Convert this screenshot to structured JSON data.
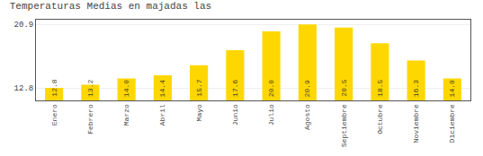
{
  "chart_data": {
    "type": "bar",
    "title": "Temperaturas Medias en majadas las",
    "categories": [
      "Enero",
      "Febrero",
      "Marzo",
      "Abril",
      "Mayo",
      "Junio",
      "Julio",
      "Agosto",
      "Septiembre",
      "Octubre",
      "Noviembre",
      "Diciembre"
    ],
    "values": [
      12.8,
      13.2,
      14.0,
      14.4,
      15.7,
      17.6,
      20.0,
      20.9,
      20.5,
      18.5,
      16.3,
      14.0
    ],
    "value_labels": [
      "12.8",
      "13.2",
      "14.0",
      "14.4",
      "15.7",
      "17.6",
      "20.0",
      "20.9",
      "20.5",
      "18.5",
      "16.3",
      "14.0"
    ],
    "color": "#FFD700",
    "ylim": [
      11.2,
      21.5
    ],
    "yticks": [
      12.8,
      20.9
    ],
    "grid": true,
    "data_labels": true
  }
}
